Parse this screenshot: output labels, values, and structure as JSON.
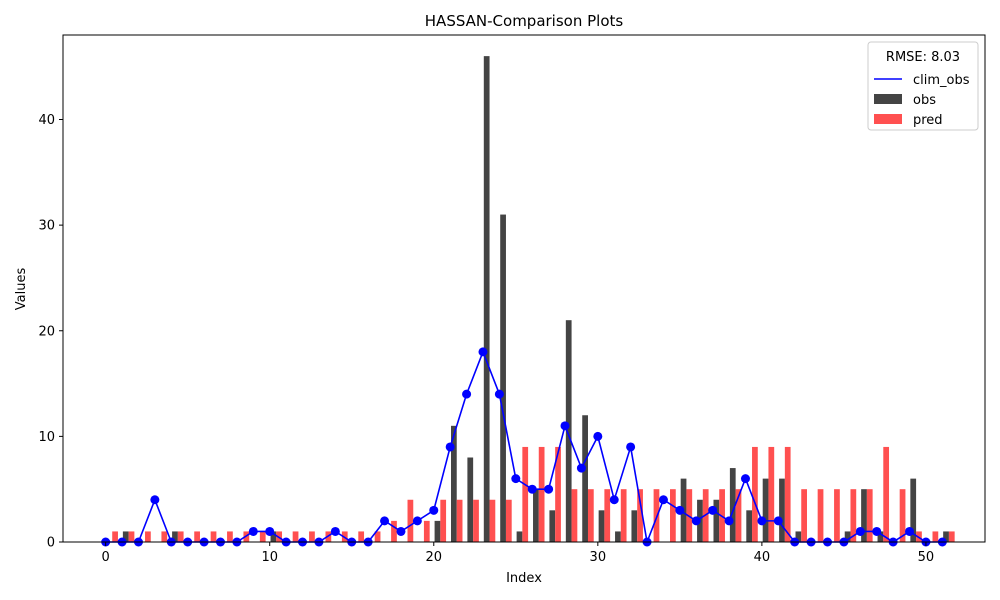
{
  "chart_data": {
    "type": "bar",
    "title": "HASSAN-Comparison Plots",
    "xlabel": "Index",
    "ylabel": "Values",
    "xlim": [
      -2.6,
      53.6
    ],
    "ylim": [
      0,
      48
    ],
    "xticks": [
      0,
      10,
      20,
      30,
      40,
      50
    ],
    "yticks": [
      0,
      10,
      20,
      30,
      40
    ],
    "legend": {
      "title": "RMSE: 8.03",
      "position": "top-right",
      "entries": [
        {
          "label": "clim_obs",
          "kind": "line",
          "color": "#0000ff"
        },
        {
          "label": "obs",
          "kind": "bar",
          "color": "#444444"
        },
        {
          "label": "pred",
          "kind": "bar",
          "color": "#ff5050"
        }
      ]
    },
    "x": [
      0,
      1,
      2,
      3,
      4,
      5,
      6,
      7,
      8,
      9,
      10,
      11,
      12,
      13,
      14,
      15,
      16,
      17,
      18,
      19,
      20,
      21,
      22,
      23,
      24,
      25,
      26,
      27,
      28,
      29,
      30,
      31,
      32,
      33,
      34,
      35,
      36,
      37,
      38,
      39,
      40,
      41,
      42,
      43,
      44,
      45,
      46,
      47,
      48,
      49,
      50,
      51
    ],
    "series": [
      {
        "name": "obs",
        "type": "bar",
        "color": "#444444",
        "values": [
          0,
          1,
          0,
          0,
          1,
          0,
          0,
          0,
          0,
          0,
          1,
          0,
          0,
          0,
          0,
          0,
          0,
          0,
          0,
          0,
          2,
          11,
          8,
          46,
          31,
          1,
          5,
          3,
          21,
          12,
          3,
          1,
          3,
          0,
          0,
          6,
          4,
          4,
          7,
          3,
          6,
          6,
          1,
          0,
          0,
          1,
          5,
          1,
          0,
          6,
          0,
          1
        ]
      },
      {
        "name": "pred",
        "type": "bar",
        "color": "#ff5050",
        "values": [
          1,
          1,
          1,
          1,
          1,
          1,
          1,
          1,
          1,
          1,
          1,
          1,
          1,
          1,
          1,
          1,
          1,
          2,
          4,
          2,
          4,
          4,
          4,
          4,
          4,
          9,
          9,
          9,
          5,
          5,
          5,
          5,
          5,
          5,
          5,
          5,
          5,
          5,
          5,
          9,
          9,
          9,
          5,
          5,
          5,
          5,
          5,
          9,
          5,
          1,
          1,
          1
        ]
      },
      {
        "name": "clim_obs",
        "type": "line",
        "color": "#0000ff",
        "values": [
          0,
          0,
          0,
          4,
          0,
          0,
          0,
          0,
          0,
          1,
          1,
          0,
          0,
          0,
          1,
          0,
          0,
          2,
          1,
          2,
          3,
          9,
          14,
          18,
          14,
          6,
          5,
          5,
          11,
          7,
          10,
          4,
          9,
          0,
          4,
          3,
          2,
          3,
          2,
          6,
          2,
          2,
          0,
          0,
          0,
          0,
          1,
          1,
          0,
          1,
          0,
          0
        ]
      }
    ]
  }
}
